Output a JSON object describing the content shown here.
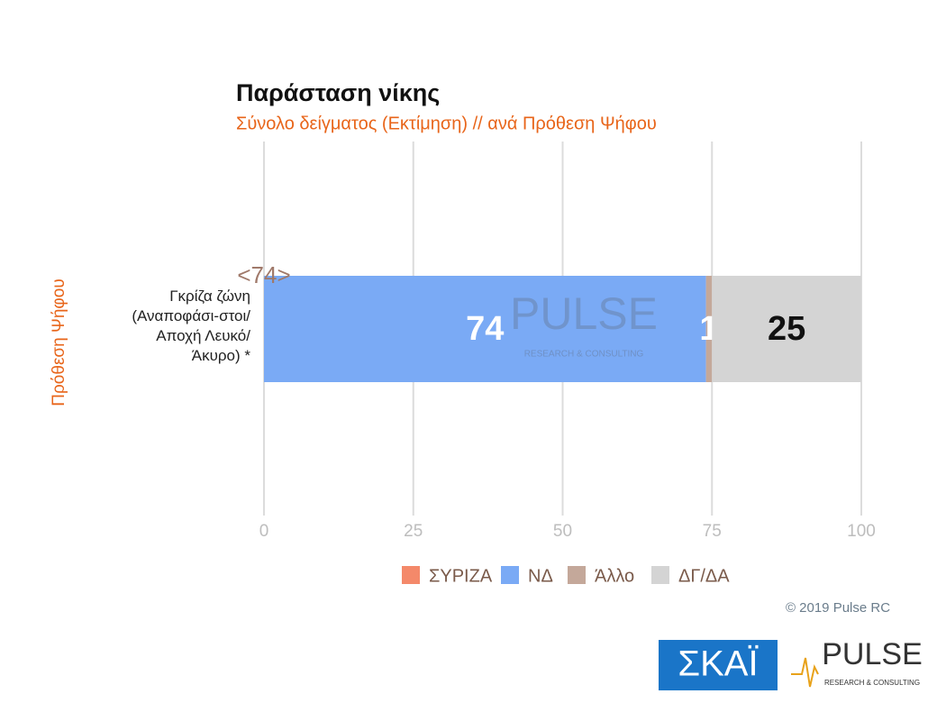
{
  "chart_data": {
    "type": "stacked-barh",
    "title": "Παράσταση νίκης",
    "subtitle": "Σύνολο δείγματος   (Εκτίμηση) // ανά Πρόθεση Ψήφου",
    "y_label": "Πρόθεση Ψήφου",
    "categories": [
      "Γκρίζα ζώνη (Αναποφάσι-στοι/Αποχή Λευκό/Άκυρο) *"
    ],
    "series": [
      {
        "name": "ΣΥΡΙΖΑ",
        "color": "#f4896a",
        "label_color": "#ffffff",
        "values": [
          0
        ]
      },
      {
        "name": "ΝΔ",
        "color": "#7aaaf5",
        "label_color": "#ffffff",
        "values": [
          74
        ]
      },
      {
        "name": "Άλλο",
        "color": "#c4a89a",
        "label_color": "#ffffff",
        "values": [
          1
        ]
      },
      {
        "name": "ΔΓ/ΔΑ",
        "color": "#d4d4d4",
        "label_color": "#111111",
        "values": [
          25
        ]
      }
    ],
    "annotation": "<74>",
    "xlim": [
      0,
      100
    ],
    "xticks": [
      0,
      25,
      50,
      75,
      100
    ],
    "grid": true,
    "watermark": "PULSE",
    "watermark_tagline": "RESEARCH & CONSULTING"
  },
  "footer": {
    "copyright": "© 2019 Pulse RC",
    "skai_logo": "ΣΚΑΪ",
    "pulse_logo": "PULSE",
    "pulse_tagline": "RESEARCH & CONSULTING"
  }
}
